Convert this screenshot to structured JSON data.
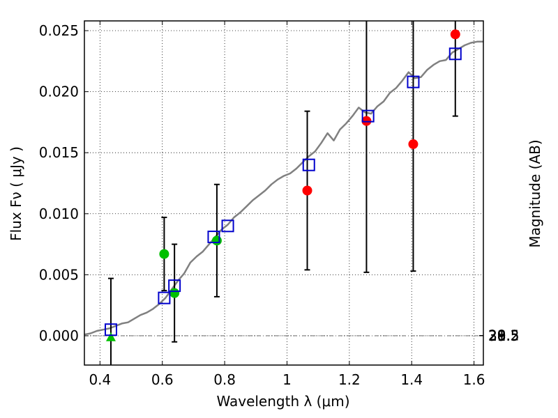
{
  "chart_data": {
    "type": "scatter",
    "xlabel": "Wavelength  λ (μm)",
    "ylabel": "Flux  Fν  ( μJy )",
    "y2label": "Magnitude (AB)",
    "xlim": [
      0.35,
      1.63
    ],
    "ylim": [
      -0.0024,
      0.0258
    ],
    "grid": true,
    "x_ticks": [
      {
        "v": 0.4,
        "label": "0.4"
      },
      {
        "v": 0.6,
        "label": "0.6"
      },
      {
        "v": 0.8,
        "label": "0.8"
      },
      {
        "v": 1.0,
        "label": "1"
      },
      {
        "v": 1.2,
        "label": "1.2"
      },
      {
        "v": 1.4,
        "label": "1.4"
      },
      {
        "v": 1.6,
        "label": "1.6"
      }
    ],
    "y_ticks": [
      {
        "v": 0.0,
        "label": "0.000"
      },
      {
        "v": 0.005,
        "label": "0.005"
      },
      {
        "v": 0.01,
        "label": "0.010"
      },
      {
        "v": 0.015,
        "label": "0.015"
      },
      {
        "v": 0.02,
        "label": "0.020"
      },
      {
        "v": 0.025,
        "label": "0.025"
      }
    ],
    "y2_ticks": [
      {
        "mag": 28,
        "label": "28"
      },
      {
        "mag": 28.2,
        "label": "28.2"
      },
      {
        "mag": 28.5,
        "label": "28.5"
      },
      {
        "mag": 29,
        "label": "29"
      },
      {
        "mag": 29.5,
        "label": "29.5"
      },
      {
        "mag": 30,
        "label": "30"
      },
      {
        "mag": 31,
        "label": "31"
      }
    ],
    "model_curve": {
      "color": "#808080",
      "x": [
        0.35,
        0.37,
        0.39,
        0.41,
        0.43,
        0.45,
        0.47,
        0.49,
        0.51,
        0.53,
        0.55,
        0.57,
        0.59,
        0.61,
        0.63,
        0.65,
        0.67,
        0.69,
        0.71,
        0.73,
        0.75,
        0.77,
        0.79,
        0.81,
        0.83,
        0.85,
        0.87,
        0.89,
        0.91,
        0.93,
        0.95,
        0.97,
        0.99,
        1.01,
        1.03,
        1.05,
        1.07,
        1.09,
        1.11,
        1.13,
        1.15,
        1.17,
        1.19,
        1.21,
        1.23,
        1.25,
        1.27,
        1.29,
        1.31,
        1.33,
        1.35,
        1.37,
        1.39,
        1.41,
        1.43,
        1.45,
        1.47,
        1.49,
        1.51,
        1.53,
        1.55,
        1.57,
        1.59,
        1.61,
        1.63
      ],
      "y": [
        0.0001,
        0.0002,
        0.0004,
        0.0005,
        0.0006,
        0.0008,
        0.001,
        0.0011,
        0.0014,
        0.0017,
        0.0019,
        0.0022,
        0.0026,
        0.0031,
        0.0038,
        0.0045,
        0.0051,
        0.006,
        0.0065,
        0.0069,
        0.0075,
        0.0081,
        0.0087,
        0.0091,
        0.0097,
        0.0101,
        0.0106,
        0.0111,
        0.0115,
        0.0119,
        0.0124,
        0.0128,
        0.0131,
        0.0133,
        0.0137,
        0.0142,
        0.0147,
        0.0151,
        0.0158,
        0.0166,
        0.016,
        0.0169,
        0.0174,
        0.018,
        0.0187,
        0.0183,
        0.0182,
        0.0188,
        0.0192,
        0.0199,
        0.0203,
        0.0209,
        0.0216,
        0.0211,
        0.0212,
        0.0218,
        0.0222,
        0.0225,
        0.0226,
        0.0232,
        0.0235,
        0.0238,
        0.024,
        0.0241,
        0.0241
      ]
    },
    "series": [
      {
        "marker": "circle-filled",
        "color": "#ff0000",
        "points": [
          {
            "x": 1.065,
            "y": 0.0119,
            "err": 0.0065
          },
          {
            "x": 1.255,
            "y": 0.0176,
            "err": 0.0124
          },
          {
            "x": 1.405,
            "y": 0.0157,
            "err": 0.0104
          },
          {
            "x": 1.54,
            "y": 0.0247,
            "err": 0.0067
          }
        ]
      },
      {
        "marker": "circle-filled",
        "color": "#00c000",
        "points": [
          {
            "x": 0.606,
            "y": 0.0067,
            "err": 0.003
          },
          {
            "x": 0.639,
            "y": 0.0035,
            "err": 0.004
          },
          {
            "x": 0.775,
            "y": 0.0078,
            "err": 0.0046
          }
        ]
      },
      {
        "marker": "triangle-filled",
        "color": "#00c000",
        "points": [
          {
            "x": 0.435,
            "y": -0.0001,
            "err": 0.0048
          }
        ]
      },
      {
        "marker": "square-open",
        "color": "#0000cc",
        "points": [
          {
            "x": 0.435,
            "y": 0.0005
          },
          {
            "x": 0.606,
            "y": 0.0031
          },
          {
            "x": 0.639,
            "y": 0.0041
          },
          {
            "x": 0.765,
            "y": 0.0081
          },
          {
            "x": 0.81,
            "y": 0.009
          },
          {
            "x": 1.07,
            "y": 0.014
          },
          {
            "x": 1.26,
            "y": 0.018
          },
          {
            "x": 1.405,
            "y": 0.0208
          },
          {
            "x": 1.54,
            "y": 0.0231
          }
        ]
      }
    ],
    "zero_line": {
      "y": 0,
      "style": "dash-dot"
    }
  }
}
